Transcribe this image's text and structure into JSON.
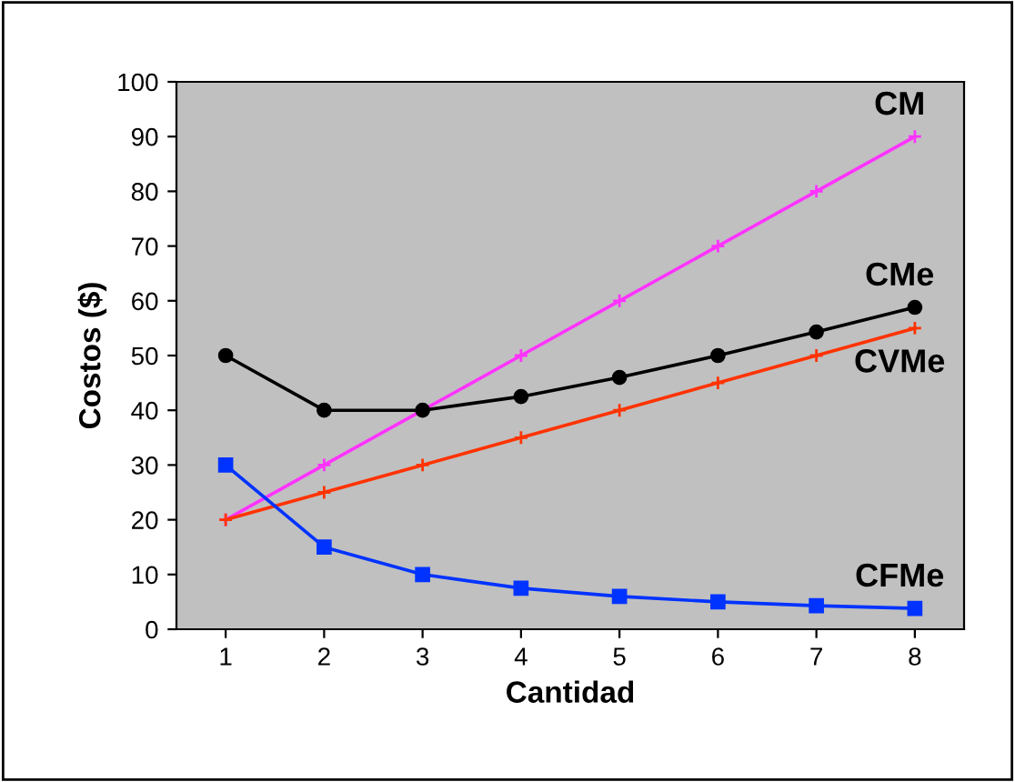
{
  "chart_data": {
    "type": "line",
    "xlabel": "Cantidad",
    "ylabel": "Costos ($)",
    "categories": [
      "1",
      "2",
      "3",
      "4",
      "5",
      "6",
      "7",
      "8"
    ],
    "ylim": [
      0,
      100
    ],
    "yticks": [
      0,
      10,
      20,
      30,
      40,
      50,
      60,
      70,
      80,
      90,
      100
    ],
    "grid": false,
    "legend": false,
    "series": [
      {
        "name": "CM",
        "color": "#ff33ff",
        "marker": "cross",
        "values": [
          20,
          30,
          40,
          50,
          60,
          70,
          80,
          90
        ]
      },
      {
        "name": "CMe",
        "color": "#000000",
        "marker": "circle",
        "values": [
          50,
          40,
          40,
          42.5,
          46,
          50,
          54.3,
          58.8
        ]
      },
      {
        "name": "CVMe",
        "color": "#ff3300",
        "marker": "cross",
        "values": [
          20,
          25,
          30,
          35,
          40,
          45,
          50,
          55
        ]
      },
      {
        "name": "CFMe",
        "color": "#0033ff",
        "marker": "square",
        "values": [
          30,
          15,
          10,
          7.5,
          6,
          5,
          4.3,
          3.8
        ]
      }
    ]
  }
}
